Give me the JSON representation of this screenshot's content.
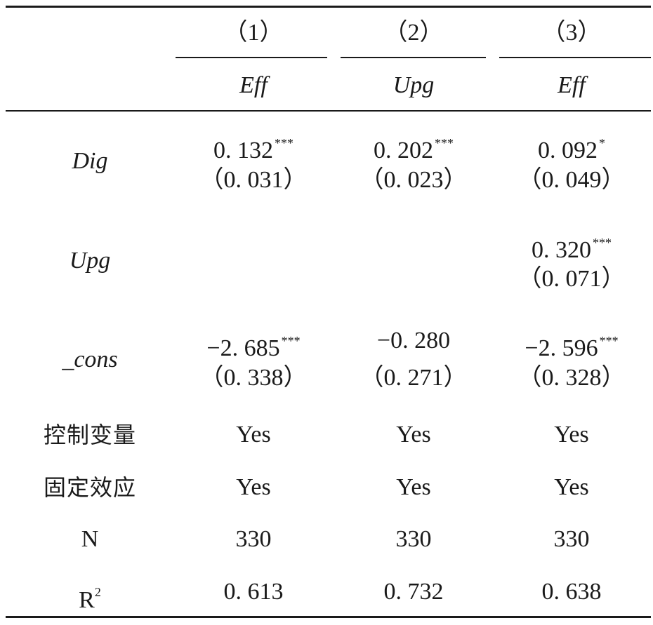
{
  "columns": [
    {
      "number": "（1）",
      "dep_var": "Eff"
    },
    {
      "number": "（2）",
      "dep_var": "Upg"
    },
    {
      "number": "（3）",
      "dep_var": "Eff"
    }
  ],
  "rows": {
    "dig": {
      "label": "Dig",
      "coef": [
        "0. 132",
        "0. 202",
        "0. 092"
      ],
      "stars": [
        "***",
        "***",
        "*"
      ],
      "se": [
        "（0. 031）",
        "（0. 023）",
        "（0. 049）"
      ]
    },
    "upg": {
      "label": "Upg",
      "coef": [
        "",
        "",
        "0. 320"
      ],
      "stars": [
        "",
        "",
        "***"
      ],
      "se": [
        "",
        "",
        "（0. 071）"
      ]
    },
    "cons": {
      "label": "_cons",
      "coef": [
        "−2. 685",
        "−0. 280",
        "−2. 596"
      ],
      "stars": [
        "***",
        "",
        "***"
      ],
      "se": [
        "（0. 338）",
        "（0. 271）",
        "（0. 328）"
      ]
    },
    "controls": {
      "label": "控制变量",
      "values": [
        "Yes",
        "Yes",
        "Yes"
      ]
    },
    "fixed_effects": {
      "label": "固定效应",
      "values": [
        "Yes",
        "Yes",
        "Yes"
      ]
    },
    "n": {
      "label": "N",
      "values": [
        "330",
        "330",
        "330"
      ]
    },
    "r2": {
      "label_base": "R",
      "label_sup": "2",
      "values": [
        "0. 613",
        "0. 732",
        "0. 638"
      ]
    }
  }
}
